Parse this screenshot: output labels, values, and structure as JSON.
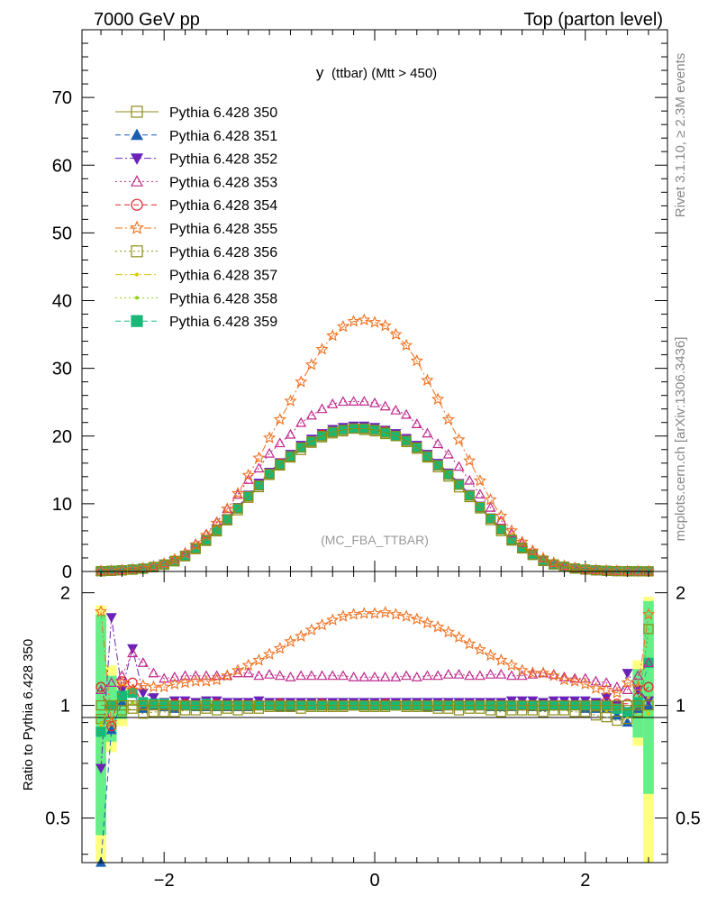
{
  "header": {
    "left_title": "7000 GeV pp",
    "right_title": "Top (parton level)"
  },
  "side": {
    "rivet": "Rivet 3.1.10, ≥ 2.3M events",
    "source": "mcplots.cern.ch [arXiv:1306.3436]"
  },
  "chart_data": {
    "type": "line",
    "title": "y",
    "title_small": "(ttbar) (Mtt > 450)",
    "watermark": "(MC_FBA_TTBAR)",
    "xlabel": "",
    "ylabel_main": "",
    "ylabel_ratio": "Ratio to Pythia 6.428 350",
    "xlim": [
      -2.78,
      2.78
    ],
    "ylim_main": [
      0,
      80
    ],
    "ylim_ratio": [
      0.38,
      2.28
    ],
    "yscale_ratio": "log",
    "xticks": [
      "−2",
      "0",
      "2"
    ],
    "yticks_main": [
      "0",
      "10",
      "20",
      "30",
      "40",
      "50",
      "60",
      "70"
    ],
    "yticks_ratio": [
      "0.5",
      "1",
      "2"
    ],
    "legend_position": "top-left",
    "x": [
      -2.6,
      -2.5,
      -2.4,
      -2.3,
      -2.2,
      -2.1,
      -2.0,
      -1.9,
      -1.8,
      -1.7,
      -1.6,
      -1.5,
      -1.4,
      -1.3,
      -1.2,
      -1.1,
      -1.0,
      -0.9,
      -0.8,
      -0.7,
      -0.6,
      -0.5,
      -0.4,
      -0.3,
      -0.2,
      -0.1,
      0.0,
      0.1,
      0.2,
      0.3,
      0.4,
      0.5,
      0.6,
      0.7,
      0.8,
      0.9,
      1.0,
      1.1,
      1.2,
      1.3,
      1.4,
      1.5,
      1.6,
      1.7,
      1.8,
      1.9,
      2.0,
      2.1,
      2.2,
      2.3,
      2.4,
      2.5,
      2.6
    ],
    "reference": [
      0.05,
      0.1,
      0.17,
      0.27,
      0.42,
      0.66,
      1.02,
      1.55,
      2.3,
      3.4,
      4.6,
      6.1,
      7.7,
      9.3,
      11.1,
      12.7,
      14.4,
      15.8,
      17.0,
      18.3,
      19.2,
      20.0,
      20.6,
      20.9,
      21.1,
      21.1,
      20.9,
      20.5,
      20.0,
      19.3,
      18.3,
      17.0,
      15.7,
      14.3,
      12.8,
      11.2,
      9.5,
      7.8,
      6.2,
      4.7,
      3.5,
      2.5,
      1.6,
      1.05,
      0.7,
      0.45,
      0.28,
      0.18,
      0.11,
      0.06,
      0.03,
      0.02,
      0.01
    ],
    "series": [
      {
        "name": "Pythia 6.428 350",
        "color": "#8c8c18",
        "marker": "square-open",
        "dash": "solid",
        "ratio": [
          1,
          1,
          1,
          1,
          1,
          1,
          1,
          1,
          1,
          1,
          1,
          1,
          1,
          1,
          1,
          1,
          1,
          1,
          1,
          1,
          1,
          1,
          1,
          1,
          1,
          1,
          1,
          1,
          1,
          1,
          1,
          1,
          1,
          1,
          1,
          1,
          1,
          1,
          1,
          1,
          1,
          1,
          1,
          1,
          1,
          1,
          1,
          1,
          1,
          1,
          1,
          1,
          1
        ]
      },
      {
        "name": "Pythia 6.428 351",
        "color": "#1a5fb0",
        "marker": "triangle-up-filled",
        "dash": "dashed",
        "ratio": [
          0.38,
          0.86,
          1.02,
          1.08,
          0.98,
          1.0,
          0.99,
          0.98,
          1.0,
          0.99,
          0.99,
          0.99,
          0.99,
          0.99,
          0.99,
          1.0,
          1.0,
          0.99,
          0.99,
          1.0,
          1.0,
          1.01,
          1.0,
          1.0,
          1.0,
          1.0,
          1.0,
          1.01,
          1.01,
          1.0,
          1.0,
          0.99,
          0.99,
          1.0,
          1.0,
          1.0,
          1.0,
          0.99,
          0.99,
          0.99,
          1.0,
          0.99,
          0.99,
          1.0,
          1.0,
          1.0,
          0.98,
          0.98,
          0.98,
          0.94,
          0.9,
          0.98,
          1.0
        ]
      },
      {
        "name": "Pythia 6.428 352",
        "color": "#6a22b8",
        "marker": "triangle-down-filled",
        "dash": "dashdot",
        "ratio": [
          0.68,
          1.72,
          1.1,
          1.42,
          1.08,
          1.05,
          1.02,
          1.03,
          1.03,
          1.02,
          1.03,
          1.03,
          1.02,
          1.02,
          1.02,
          1.03,
          1.02,
          1.02,
          1.02,
          1.02,
          1.02,
          1.02,
          1.02,
          1.02,
          1.02,
          1.02,
          1.02,
          1.02,
          1.02,
          1.02,
          1.02,
          1.02,
          1.02,
          1.02,
          1.02,
          1.02,
          1.02,
          1.02,
          1.02,
          1.03,
          1.03,
          1.03,
          1.02,
          1.03,
          1.03,
          1.03,
          1.03,
          1.02,
          1.05,
          1.0,
          1.22,
          1.1,
          1.03
        ]
      },
      {
        "name": "Pythia 6.428 353",
        "color": "#c0288c",
        "marker": "triangle-up-open",
        "dash": "dotted",
        "ratio": [
          1.1,
          1.15,
          1.2,
          1.38,
          1.3,
          1.22,
          1.18,
          1.19,
          1.2,
          1.2,
          1.2,
          1.2,
          1.2,
          1.22,
          1.22,
          1.2,
          1.21,
          1.2,
          1.19,
          1.2,
          1.2,
          1.2,
          1.2,
          1.2,
          1.19,
          1.19,
          1.19,
          1.19,
          1.19,
          1.2,
          1.19,
          1.2,
          1.2,
          1.21,
          1.21,
          1.2,
          1.2,
          1.21,
          1.21,
          1.2,
          1.2,
          1.21,
          1.22,
          1.21,
          1.19,
          1.18,
          1.18,
          1.16,
          1.15,
          1.12,
          1.1,
          1.2,
          1.3
        ]
      },
      {
        "name": "Pythia 6.428 354",
        "color": "#e0202a",
        "marker": "circle-open",
        "dash": "dashed",
        "ratio": [
          1.12,
          0.88,
          1.16,
          1.15,
          1.0,
          1.0,
          1.0,
          1.01,
          1.01,
          1.0,
          1.0,
          1.01,
          1.0,
          1.0,
          1.0,
          1.0,
          1.0,
          1.01,
          1.0,
          1.0,
          1.0,
          1.01,
          1.0,
          1.0,
          1.0,
          1.0,
          1.0,
          1.01,
          1.0,
          1.0,
          1.0,
          1.0,
          1.0,
          1.0,
          1.0,
          1.0,
          1.0,
          1.0,
          1.0,
          1.0,
          1.0,
          1.0,
          1.0,
          1.0,
          1.0,
          1.0,
          1.0,
          1.0,
          1.02,
          1.01,
          1.01,
          1.05,
          1.12
        ]
      },
      {
        "name": "Pythia 6.428 355",
        "color": "#f0701e",
        "marker": "star-open",
        "dash": "dashdot",
        "ratio": [
          1.78,
          0.9,
          1.15,
          1.1,
          1.13,
          1.12,
          1.12,
          1.14,
          1.15,
          1.16,
          1.16,
          1.17,
          1.2,
          1.24,
          1.28,
          1.32,
          1.37,
          1.42,
          1.48,
          1.53,
          1.59,
          1.64,
          1.69,
          1.73,
          1.75,
          1.76,
          1.76,
          1.77,
          1.75,
          1.73,
          1.7,
          1.66,
          1.62,
          1.57,
          1.52,
          1.46,
          1.41,
          1.36,
          1.32,
          1.28,
          1.24,
          1.22,
          1.22,
          1.2,
          1.17,
          1.16,
          1.14,
          1.11,
          1.1,
          1.08,
          1.15,
          1.12,
          1.75
        ]
      },
      {
        "name": "Pythia 6.428 356",
        "color": "#8c8c18",
        "marker": "square-open",
        "dash": "dotted",
        "ratio": [
          0.92,
          1.0,
          0.97,
          0.98,
          0.95,
          0.96,
          0.96,
          0.96,
          0.97,
          0.97,
          0.98,
          0.97,
          0.98,
          0.97,
          0.98,
          0.98,
          0.99,
          0.99,
          0.99,
          0.98,
          0.99,
          0.99,
          0.99,
          0.99,
          1.0,
          0.99,
          0.99,
          0.99,
          1.0,
          0.99,
          0.99,
          0.99,
          0.98,
          0.98,
          0.97,
          0.98,
          0.98,
          0.97,
          0.96,
          0.97,
          0.97,
          0.97,
          0.96,
          0.97,
          0.97,
          0.96,
          0.96,
          0.94,
          0.93,
          0.91,
          0.92,
          0.96,
          1.6
        ]
      },
      {
        "name": "Pythia 6.428 357",
        "color": "#d8c800",
        "marker": "dot",
        "dash": "dashdot",
        "ratio": [
          0.88,
          1.02,
          1.05,
          1.02,
          1.0,
          0.99,
          0.99,
          0.98,
          0.99,
          1.0,
          0.99,
          1.0,
          0.99,
          0.99,
          1.0,
          1.0,
          0.99,
          1.0,
          1.0,
          1.0,
          1.0,
          1.0,
          1.0,
          0.99,
          1.0,
          1.0,
          1.0,
          1.0,
          1.0,
          1.0,
          1.0,
          1.0,
          1.0,
          1.0,
          1.0,
          0.99,
          0.99,
          1.0,
          1.0,
          0.99,
          1.0,
          0.99,
          1.0,
          0.99,
          0.99,
          1.0,
          0.99,
          0.98,
          0.97,
          0.96,
          0.93,
          1.02,
          0.95
        ]
      },
      {
        "name": "Pythia 6.428 358",
        "color": "#90d018",
        "marker": "dot",
        "dash": "dotted",
        "ratio": [
          0.9,
          0.98,
          1.04,
          1.02,
          1.01,
          1.0,
          1.0,
          0.99,
          0.99,
          0.99,
          0.99,
          1.0,
          1.0,
          1.0,
          1.0,
          1.0,
          1.0,
          1.0,
          1.0,
          1.0,
          1.0,
          1.0,
          1.0,
          1.0,
          1.0,
          1.0,
          1.0,
          1.0,
          1.0,
          1.0,
          1.0,
          1.0,
          1.0,
          1.0,
          1.0,
          1.0,
          1.0,
          1.0,
          1.0,
          1.0,
          1.0,
          1.0,
          1.0,
          1.0,
          0.99,
          1.0,
          1.0,
          0.99,
          0.99,
          0.97,
          0.95,
          1.0,
          1.05
        ]
      },
      {
        "name": "Pythia 6.428 359",
        "color": "#18b878",
        "marker": "square-filled",
        "dash": "dashed",
        "ratio": [
          0.85,
          1.0,
          1.06,
          1.08,
          1.02,
          1.01,
          1.01,
          1.0,
          1.0,
          1.0,
          1.01,
          1.0,
          1.0,
          1.0,
          1.0,
          1.0,
          1.0,
          1.0,
          1.0,
          1.0,
          1.0,
          1.0,
          1.0,
          1.0,
          1.0,
          1.0,
          1.0,
          1.0,
          1.0,
          1.0,
          1.0,
          1.0,
          1.0,
          1.0,
          1.0,
          1.0,
          1.0,
          1.0,
          1.0,
          1.0,
          1.0,
          1.0,
          1.0,
          1.0,
          1.0,
          1.0,
          1.0,
          1.0,
          1.0,
          0.98,
          0.96,
          1.02,
          1.3
        ]
      }
    ],
    "band": {
      "x_ranges": [
        [
          -2.65,
          -2.55
        ],
        [
          -2.55,
          -2.45
        ],
        [
          -2.45,
          -2.35
        ],
        [
          2.45,
          2.55
        ],
        [
          2.55,
          2.65
        ]
      ],
      "green_ratio": [
        [
          0.45,
          1.75
        ],
        [
          0.8,
          1.2
        ],
        [
          0.92,
          1.1
        ],
        [
          0.82,
          1.25
        ],
        [
          0.58,
          1.9
        ]
      ],
      "yellow_ratio": [
        [
          0.38,
          1.85
        ],
        [
          0.75,
          1.28
        ],
        [
          0.88,
          1.15
        ],
        [
          0.78,
          1.32
        ],
        [
          0.38,
          1.95
        ]
      ]
    }
  }
}
